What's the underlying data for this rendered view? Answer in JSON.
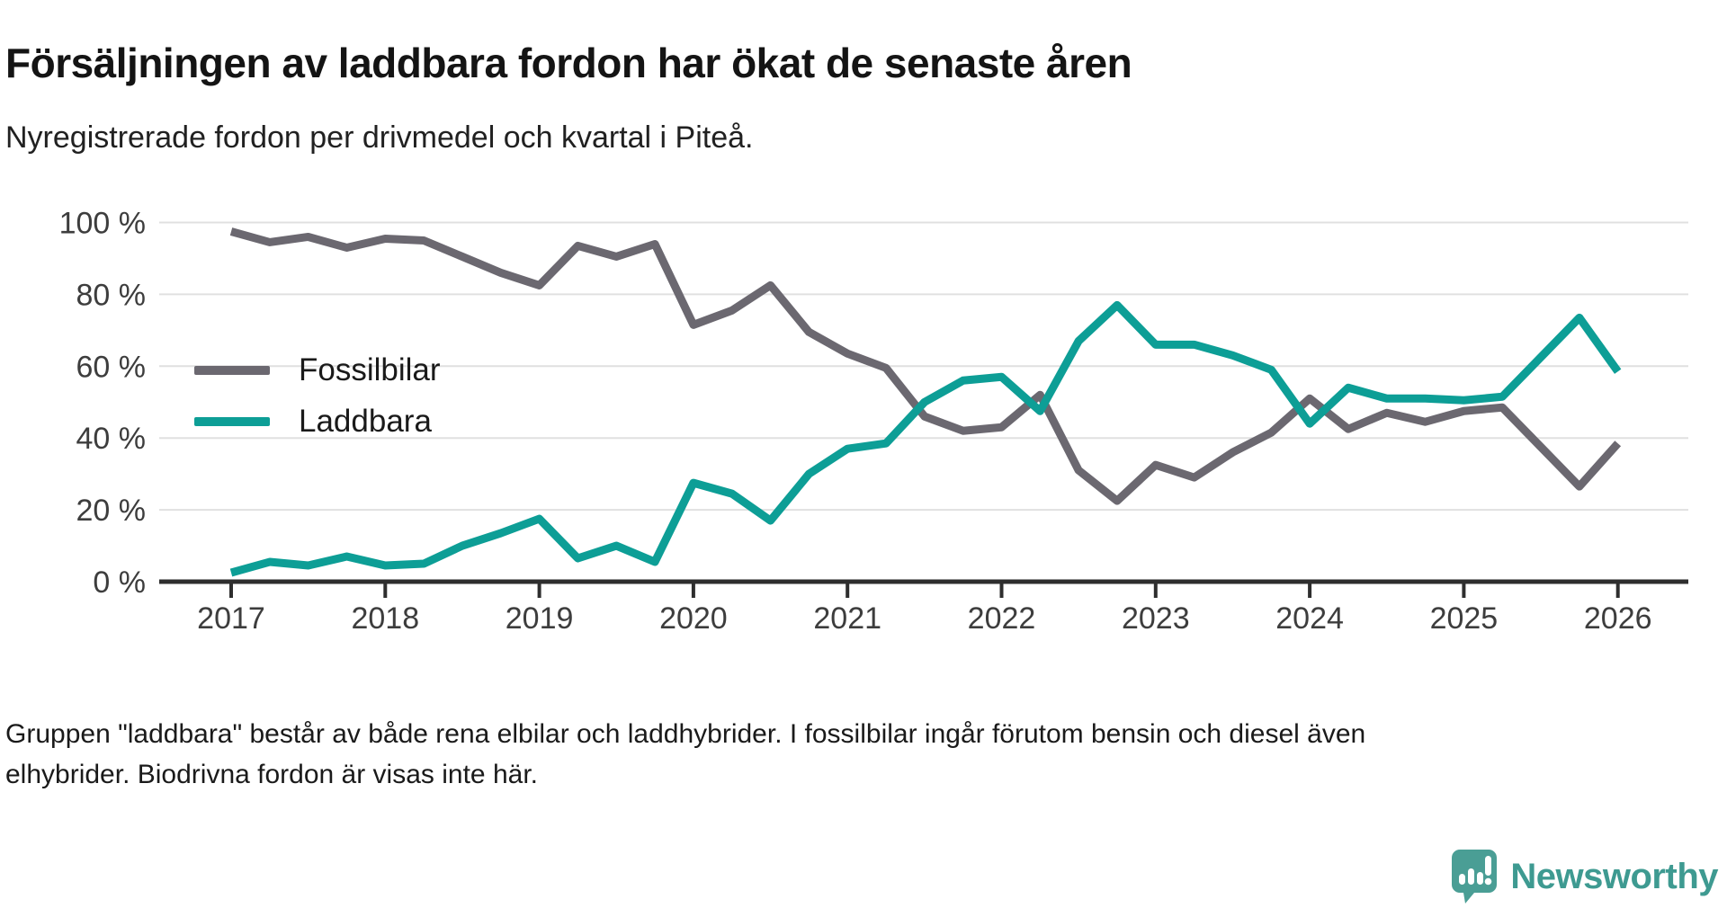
{
  "title": "Försäljningen av laddbara fordon har ökat de senaste åren",
  "subtitle": "Nyregistrerade fordon per drivmedel och kvartal i Piteå.",
  "footnote_lines": [
    "Gruppen \"laddbara\" består av både rena elbilar och laddhybrider. I fossilbilar ingår förutom bensin och diesel även",
    "elhybrider. Biodrivna fordon är visas inte här."
  ],
  "branding": {
    "logo_text": "Newsworthy",
    "logo_icon": "speech-bubble-bar-chart-exclamation",
    "color": "#3e9a91"
  },
  "colors": {
    "fossil_line": "#6b6870",
    "laddbara_line": "#0d9e96",
    "grid": "#e0e0e0",
    "axis": "#2e2e2e",
    "tick_text": "#3d3d3d"
  },
  "chart_data": {
    "type": "line",
    "title": "Nyregistrerade fordon per drivmedel och kvartal i Piteå",
    "frequency": "quarterly",
    "x": [
      "2017K1",
      "2017K2",
      "2017K3",
      "2017K4",
      "2018K1",
      "2018K2",
      "2018K3",
      "2018K4",
      "2019K1",
      "2019K2",
      "2019K3",
      "2019K4",
      "2020K1",
      "2020K2",
      "2020K3",
      "2020K4",
      "2021K1",
      "2021K2",
      "2021K3",
      "2021K4",
      "2022K1",
      "2022K2",
      "2022K3",
      "2022K4",
      "2023K1",
      "2023K2",
      "2023K3",
      "2023K4",
      "2024K1",
      "2024K2",
      "2024K3",
      "2024K4",
      "2025K1",
      "2025K2",
      "2025K3",
      "2025K4",
      "2026K1"
    ],
    "x_tick_labels": [
      "2017",
      "2018",
      "2019",
      "2020",
      "2021",
      "2022",
      "2023",
      "2024",
      "2025",
      "2026"
    ],
    "y_tick_labels": [
      "0 %",
      "20 %",
      "40 %",
      "60 %",
      "80 %",
      "100 %"
    ],
    "ylim": [
      0,
      100
    ],
    "y_unit": "%",
    "grid": "horizontal",
    "legend_position": "inside-left",
    "series": [
      {
        "name": "Fossilbilar",
        "color": "#6b6870",
        "values": [
          97.5,
          94.5,
          96,
          93,
          95.5,
          95,
          90.5,
          86,
          82.5,
          93.5,
          90.5,
          94,
          71.5,
          75.5,
          82.5,
          69.5,
          63.5,
          59.5,
          46,
          42,
          43,
          52,
          31,
          22.5,
          32.5,
          29,
          36,
          41.5,
          51,
          42.5,
          47,
          44.5,
          47.5,
          48.5,
          37.5,
          26.5,
          38.5
        ]
      },
      {
        "name": "Laddbara",
        "color": "#0d9e96",
        "values": [
          2.5,
          5.5,
          4.5,
          7,
          4.5,
          5,
          10,
          13.5,
          17.5,
          6.5,
          10,
          5.5,
          27.5,
          24.5,
          17,
          30,
          37,
          38.5,
          50,
          56,
          57,
          47.5,
          67,
          77,
          66,
          66,
          63,
          59,
          44,
          54,
          51,
          51,
          50.5,
          51.5,
          62.5,
          73.5,
          58.5
        ]
      }
    ]
  }
}
